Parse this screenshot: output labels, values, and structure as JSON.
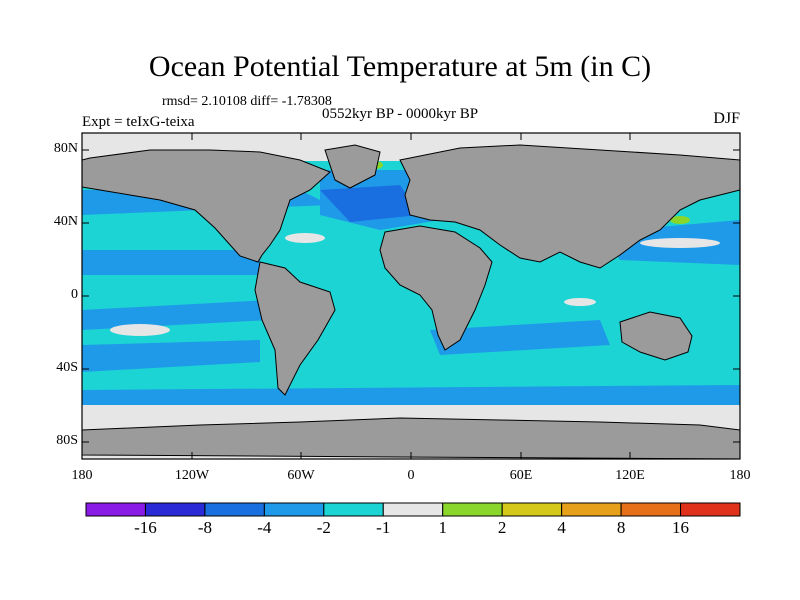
{
  "title": "Ocean Potential Temperature at 5m (in C)",
  "stats": "rmsd= 2.10108 diff= -1.78308",
  "period": "0552kyr BP - 0000kyr BP",
  "experiment": "Expt = teIxG-teixa",
  "season": "DJF",
  "lat_labels": [
    "80N",
    "40N",
    "0",
    "40S",
    "80S"
  ],
  "lon_labels": [
    "180",
    "120W",
    "60W",
    "0",
    "60E",
    "120E",
    "180"
  ],
  "colorbar": {
    "colors": [
      "#8a1ae6",
      "#2a2ad6",
      "#1a6fe0",
      "#1f9ae8",
      "#1cd4d4",
      "#e6e6e6",
      "#8ad62a",
      "#d4c81a",
      "#e6a01a",
      "#e6701a",
      "#e0321a"
    ],
    "labels": [
      "-16",
      "-8",
      "-4",
      "-2",
      "-1",
      "1",
      "2",
      "4",
      "8",
      "16"
    ]
  },
  "legend_colors": {
    "land": "#9b9b9b",
    "sea_ice_missing": "#e6e6e6",
    "deep_cyan": "#1cd4d4",
    "blue": "#1f9ae8",
    "dark_blue": "#1a6fe0"
  }
}
